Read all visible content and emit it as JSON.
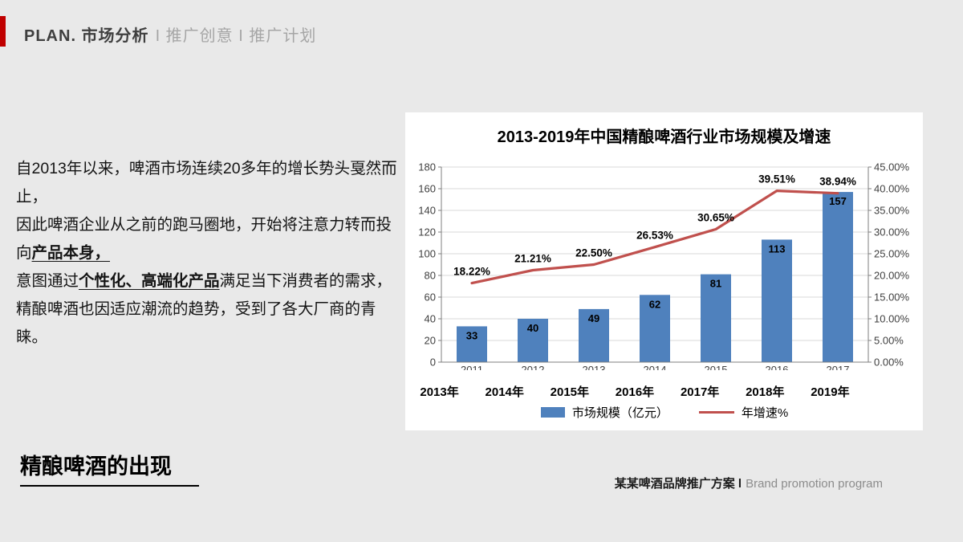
{
  "header": {
    "accent_color": "#c00000",
    "title": "PLAN. 市场分析",
    "subtitle": "I 推广创意 I 推广计划"
  },
  "body": {
    "paragraphs": [
      [
        {
          "t": "自2013年以来，啤酒市场连续20多年的增长势头戛然而止，",
          "em": false
        }
      ],
      [
        {
          "t": "因此啤酒企业从之前的跑马圈地，开始将注意力转而投向",
          "em": false
        },
        {
          "t": "产品本身，",
          "em": true
        }
      ],
      [
        {
          "t": "意图通过",
          "em": false
        },
        {
          "t": "个性化、高端化产品",
          "em": true
        },
        {
          "t": "满足当下消费者的需求，",
          "em": false
        }
      ],
      [
        {
          "t": "精酿啤酒也因适应潮流的趋势，受到了各大厂商的青睐。",
          "em": false
        }
      ]
    ]
  },
  "chart_data": {
    "type": "bar+line",
    "title": "2013-2019年中国精酿啤酒行业市场规模及增速",
    "categories": [
      "2013年",
      "2014年",
      "2015年",
      "2016年",
      "2017年",
      "2018年",
      "2019年"
    ],
    "inner_axis_labels": [
      "2011",
      "2012",
      "2013",
      "2014",
      "2015",
      "2016",
      "2017"
    ],
    "series": [
      {
        "name": "市场规模（亿元）",
        "type": "bar",
        "values": [
          33,
          40,
          49,
          62,
          81,
          113,
          157
        ],
        "labels": [
          "33",
          "40",
          "49",
          "62",
          "81",
          "113",
          "157"
        ],
        "color": "#4f81bd",
        "axis": "left"
      },
      {
        "name": "年增速%",
        "type": "line",
        "values": [
          18.22,
          21.21,
          22.5,
          26.53,
          30.65,
          39.51,
          38.94
        ],
        "labels": [
          "18.22%",
          "21.21%",
          "22.50%",
          "26.53%",
          "30.65%",
          "39.51%",
          "38.94%"
        ],
        "color": "#c0504d",
        "axis": "right"
      }
    ],
    "left_axis": {
      "min": 0,
      "max": 180,
      "step": 20,
      "ticks": [
        "0",
        "20",
        "40",
        "60",
        "80",
        "100",
        "120",
        "140",
        "160",
        "180"
      ]
    },
    "right_axis": {
      "min": 0,
      "max": 45,
      "step": 5,
      "ticks": [
        "0.00%",
        "5.00%",
        "10.00%",
        "15.00%",
        "20.00%",
        "25.00%",
        "30.00%",
        "35.00%",
        "40.00%",
        "45.00%"
      ]
    },
    "grid": true,
    "legend_position": "bottom"
  },
  "footer": {
    "section_title": "精酿啤酒的出现",
    "credit_strong": "某某啤酒品牌推广方案 l",
    "credit_light": "Brand promotion program"
  }
}
